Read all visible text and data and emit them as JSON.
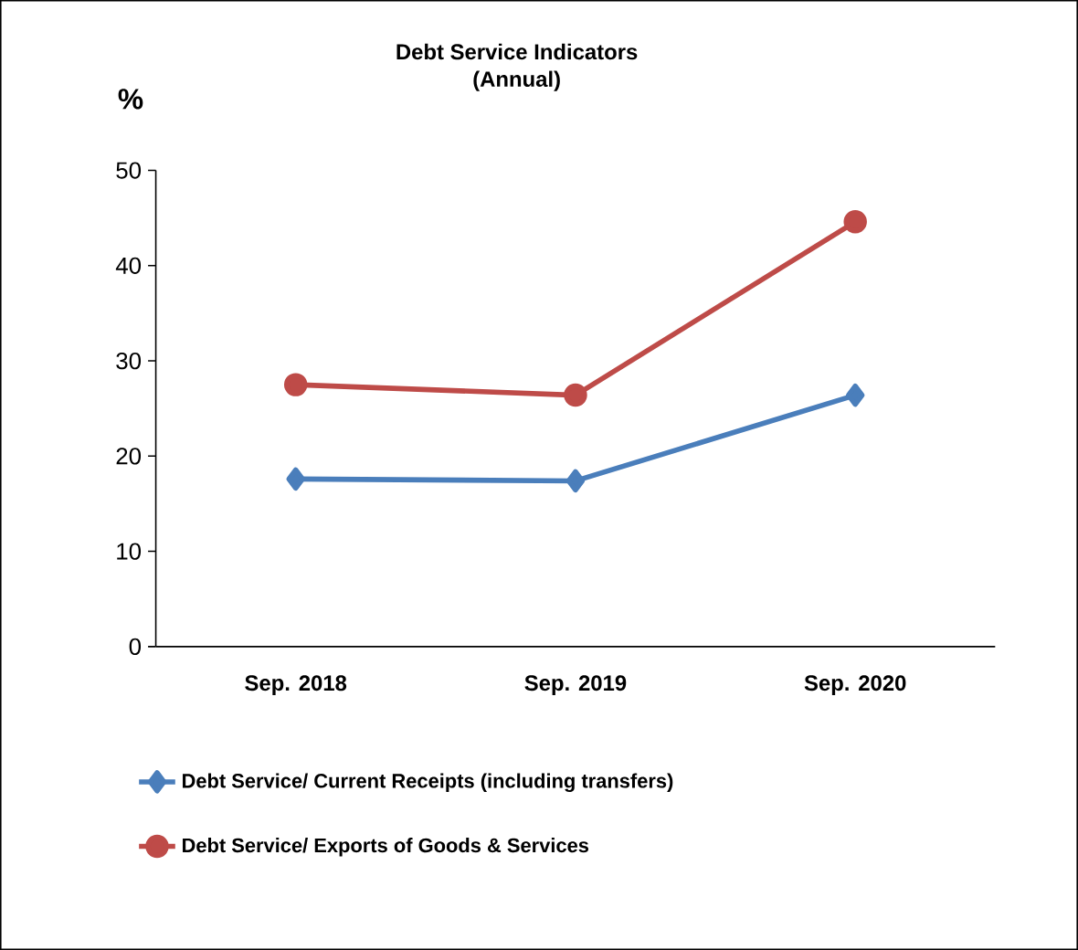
{
  "chart_data": {
    "type": "line",
    "title": "Debt Service Indicators\n(Annual)",
    "ylabel": "%",
    "categories": [
      "Sep. 2018",
      "Sep. 2019",
      "Sep. 2020"
    ],
    "series": [
      {
        "name": "Debt Service/ Current Receipts (including transfers)",
        "color": "#4a7ebb",
        "marker": "diamond",
        "values": [
          17.6,
          17.4,
          26.4
        ]
      },
      {
        "name": "Debt Service/ Exports of Goods & Services",
        "color": "#be4b48",
        "marker": "circle",
        "values": [
          27.5,
          26.4,
          44.6
        ]
      }
    ],
    "ylim": [
      0,
      50
    ],
    "yticks": [
      0,
      10,
      20,
      30,
      40,
      50
    ],
    "grid": false,
    "legend": "bottom",
    "line_style": "solid"
  }
}
